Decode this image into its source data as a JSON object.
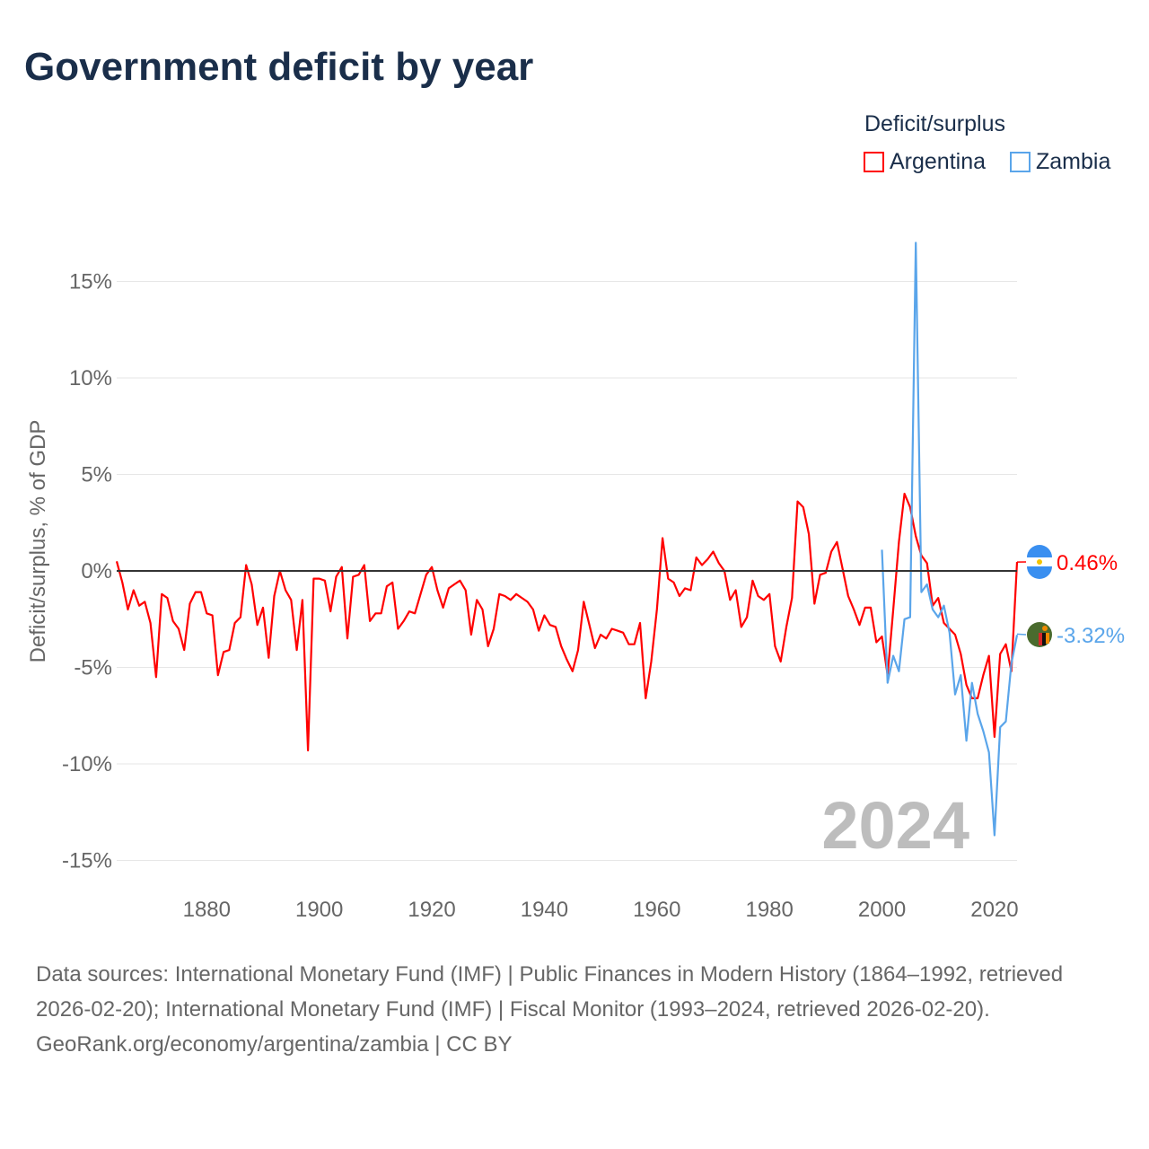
{
  "title": "Government deficit by year",
  "legend": {
    "title": "Deficit/surplus",
    "items": [
      {
        "name": "Argentina",
        "color": "#ff0000"
      },
      {
        "name": "Zambia",
        "color": "#5aa5ea"
      }
    ]
  },
  "year_label": "2024",
  "footer": {
    "sources": "Data sources: International Monetary Fund (IMF) | Public Finances in Modern History (1864–1992, retrieved 2026-02-20); International Monetary Fund (IMF) | Fiscal Monitor (1993–2024, retrieved 2026-02-20).",
    "credit": "GeoRank.org/economy/argentina/zambia | CC BY"
  },
  "chart_data": {
    "type": "line",
    "title": "Government deficit by year",
    "ylabel": "Deficit/surplus, % of GDP",
    "xlabel": "",
    "xlim": [
      1864,
      2024
    ],
    "ylim": [
      -15,
      17
    ],
    "x_ticks": [
      1880,
      1900,
      1920,
      1940,
      1960,
      1980,
      2000,
      2020
    ],
    "y_ticks": [
      -15,
      -10,
      -5,
      0,
      5,
      10,
      15
    ],
    "y_tick_labels": [
      "-15%",
      "-10%",
      "-5%",
      "0%",
      "5%",
      "10%",
      "15%"
    ],
    "grid": true,
    "legend_position": "top-right",
    "series": [
      {
        "name": "Argentina",
        "color": "#ff0000",
        "start_year": 1864,
        "end_label": "0.46%",
        "values": [
          0.5,
          -0.6,
          -2.0,
          -1.0,
          -1.8,
          -1.6,
          -2.7,
          -5.5,
          -1.2,
          -1.4,
          -2.6,
          -3.0,
          -4.1,
          -1.7,
          -1.1,
          -1.1,
          -2.2,
          -2.3,
          -5.4,
          -4.2,
          -4.1,
          -2.7,
          -2.4,
          0.3,
          -0.7,
          -2.8,
          -1.9,
          -4.5,
          -1.3,
          0,
          -1.0,
          -1.5,
          -4.1,
          -1.5,
          -9.3,
          -0.4,
          -0.4,
          -0.5,
          -2.1,
          -0.3,
          0.2,
          -3.5,
          -0.3,
          -0.2,
          0.3,
          -2.6,
          -2.2,
          -2.2,
          -0.8,
          -0.6,
          -3.0,
          -2.6,
          -2.1,
          -2.2,
          -1.2,
          -0.2,
          0.2,
          -1.0,
          -1.9,
          -0.9,
          -0.7,
          -0.5,
          -1.0,
          -3.3,
          -1.5,
          -2.0,
          -3.9,
          -3.0,
          -1.2,
          -1.3,
          -1.5,
          -1.2,
          -1.4,
          -1.6,
          -2.0,
          -3.1,
          -2.3,
          -2.8,
          -2.9,
          -3.9,
          -4.6,
          -5.2,
          -4.1,
          -1.6,
          -2.8,
          -4.0,
          -3.3,
          -3.5,
          -3.0,
          -3.1,
          -3.2,
          -3.8,
          -3.8,
          -2.7,
          -6.6,
          -4.7,
          -2.0,
          1.7,
          -0.4,
          -0.6,
          -1.3,
          -0.9,
          -1.0,
          0.7,
          0.3,
          0.6,
          1.0,
          0.4,
          0,
          -1.5,
          -1.0,
          -2.9,
          -2.4,
          -0.5,
          -1.3,
          -1.5,
          -1.2,
          -3.9,
          -4.7,
          -2.9,
          -1.4,
          3.6,
          3.3,
          1.9,
          -1.7,
          -0.2,
          -0.1,
          1.0,
          1.5,
          0.1,
          -1.3,
          -2.0,
          -2.8,
          -1.9,
          -1.9,
          -3.7,
          -3.4,
          -5.4,
          -2.0,
          1.5,
          4.0,
          3.3,
          1.8,
          0.8,
          0.4,
          -1.8,
          -1.4,
          -2.7,
          -3.0,
          -3.3,
          -4.3,
          -5.9,
          -6.6,
          -6.6,
          -5.4,
          -4.4,
          -8.6,
          -4.3,
          -3.8,
          -5.2,
          0.46
        ]
      },
      {
        "name": "Zambia",
        "color": "#5aa5ea",
        "start_year": 2000,
        "end_label": "-3.32%",
        "values": [
          1.1,
          -5.8,
          -4.4,
          -5.2,
          -2.5,
          -2.4,
          17.0,
          -1.1,
          -0.7,
          -2.0,
          -2.4,
          -1.8,
          -3.2,
          -6.4,
          -5.4,
          -8.8,
          -5.8,
          -7.4,
          -8.3,
          -9.4,
          -13.7,
          -8.1,
          -7.8,
          -4.8,
          -3.32
        ]
      }
    ]
  }
}
